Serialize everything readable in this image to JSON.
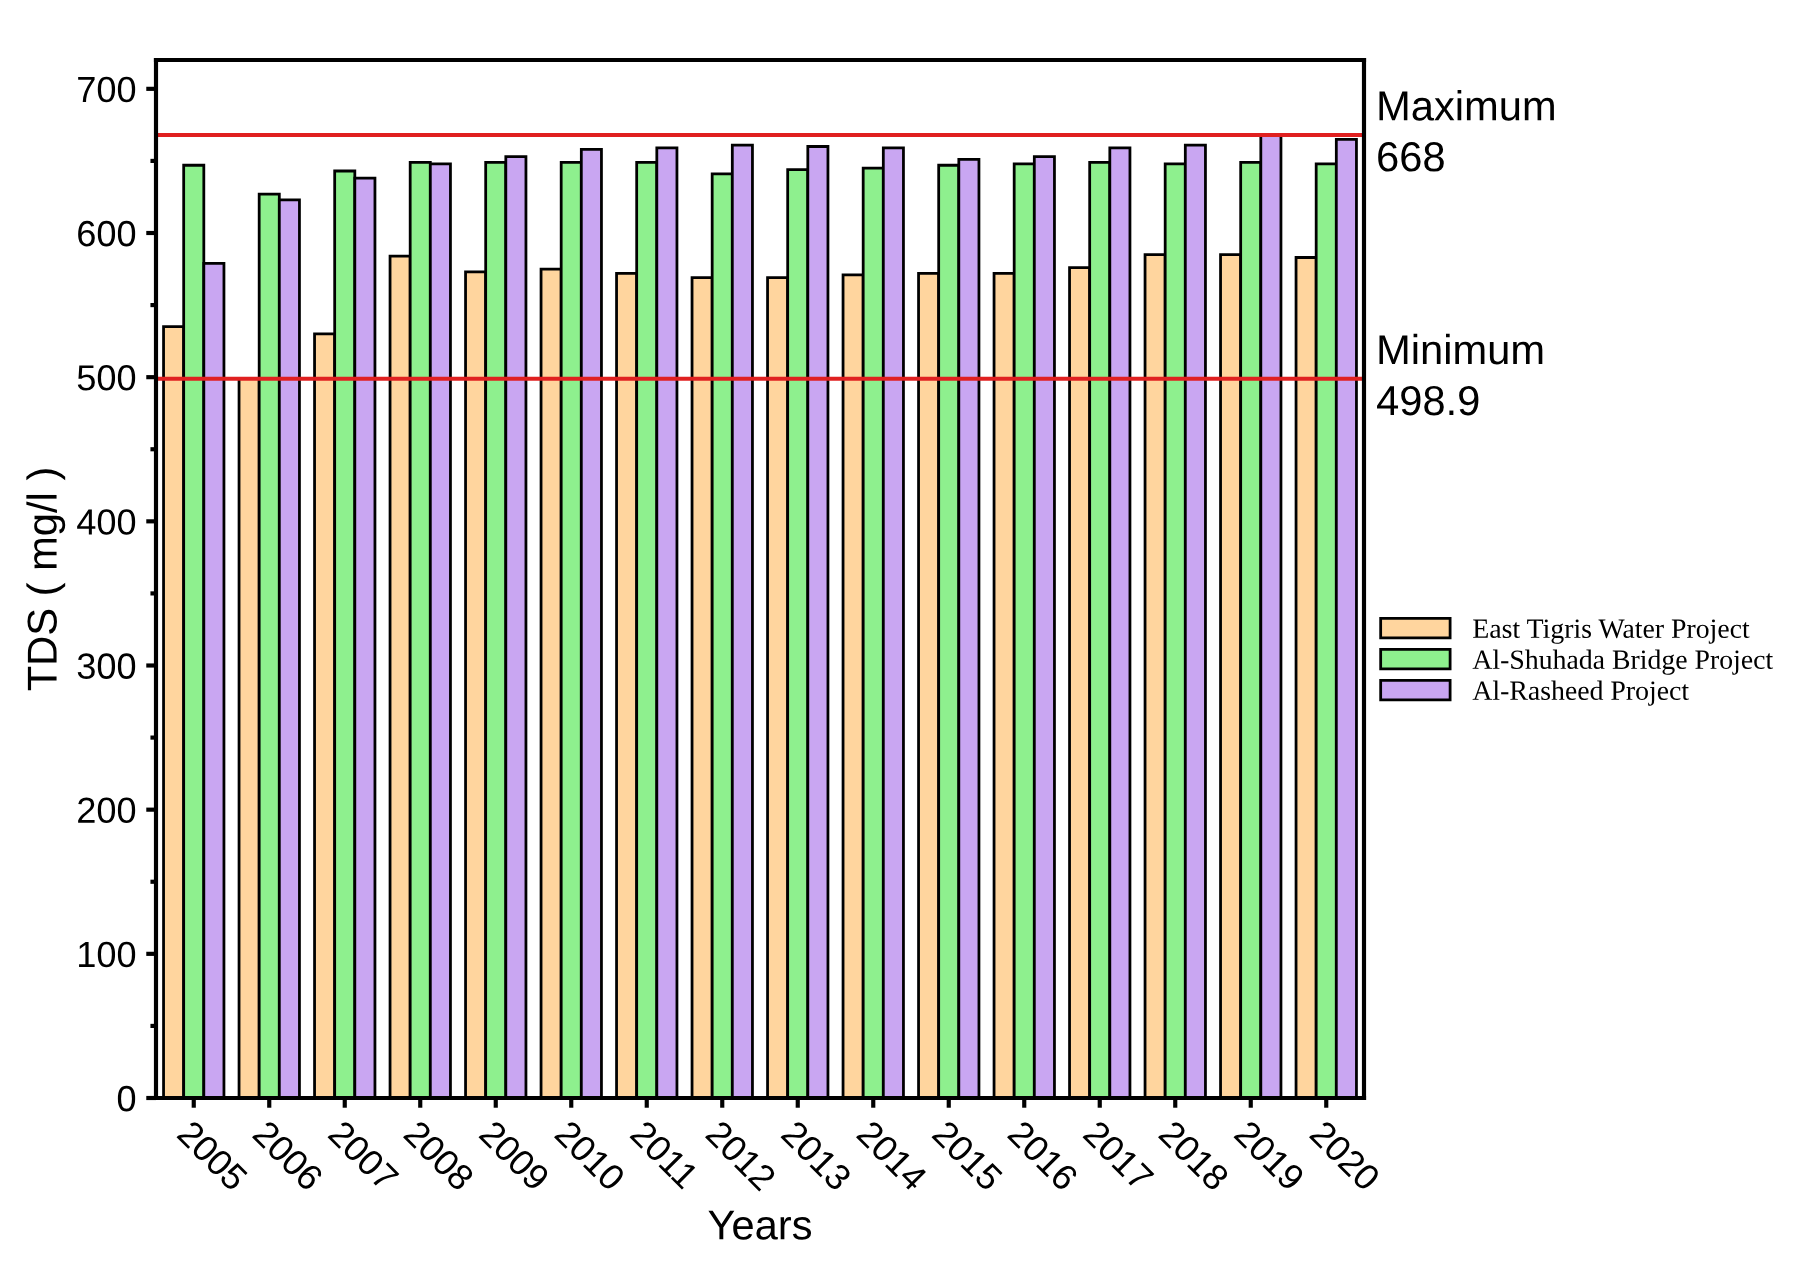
{
  "chart_data": {
    "type": "bar",
    "xlabel": "Years",
    "ylabel": "TDS ( mg/l )",
    "categories": [
      "2005",
      "2006",
      "2007",
      "2008",
      "2009",
      "2010",
      "2011",
      "2012",
      "2013",
      "2014",
      "2015",
      "2016",
      "2017",
      "2018",
      "2019",
      "2020"
    ],
    "series": [
      {
        "name": "East Tigris Water Project",
        "color": "#ffd59e",
        "values": [
          535,
          499,
          530,
          584,
          573,
          575,
          572,
          569,
          569,
          571,
          572,
          572,
          576,
          585,
          585,
          583
        ]
      },
      {
        "name": "Al-Shuhada Bridge Project",
        "color": "#8ef08e",
        "values": [
          647,
          627,
          643,
          649,
          649,
          649,
          649,
          641,
          644,
          645,
          647,
          648,
          649,
          648,
          649,
          648
        ]
      },
      {
        "name": "Al-Rasheed Project",
        "color": "#c9a6f2",
        "values": [
          579,
          623,
          638,
          648,
          653,
          658,
          659,
          661,
          660,
          659,
          651,
          653,
          659,
          661,
          668,
          665
        ]
      }
    ],
    "ylim": [
      0,
      720
    ],
    "yticks": [
      0,
      100,
      200,
      300,
      400,
      500,
      600,
      700
    ],
    "ref_lines": [
      {
        "axis": "y",
        "value": 668,
        "label": "Maximum\n668",
        "color": "#e02020"
      },
      {
        "axis": "y",
        "value": 498.9,
        "label": "Minimum\n498.9",
        "color": "#e02020"
      }
    ],
    "legend": "right",
    "grid": false
  }
}
